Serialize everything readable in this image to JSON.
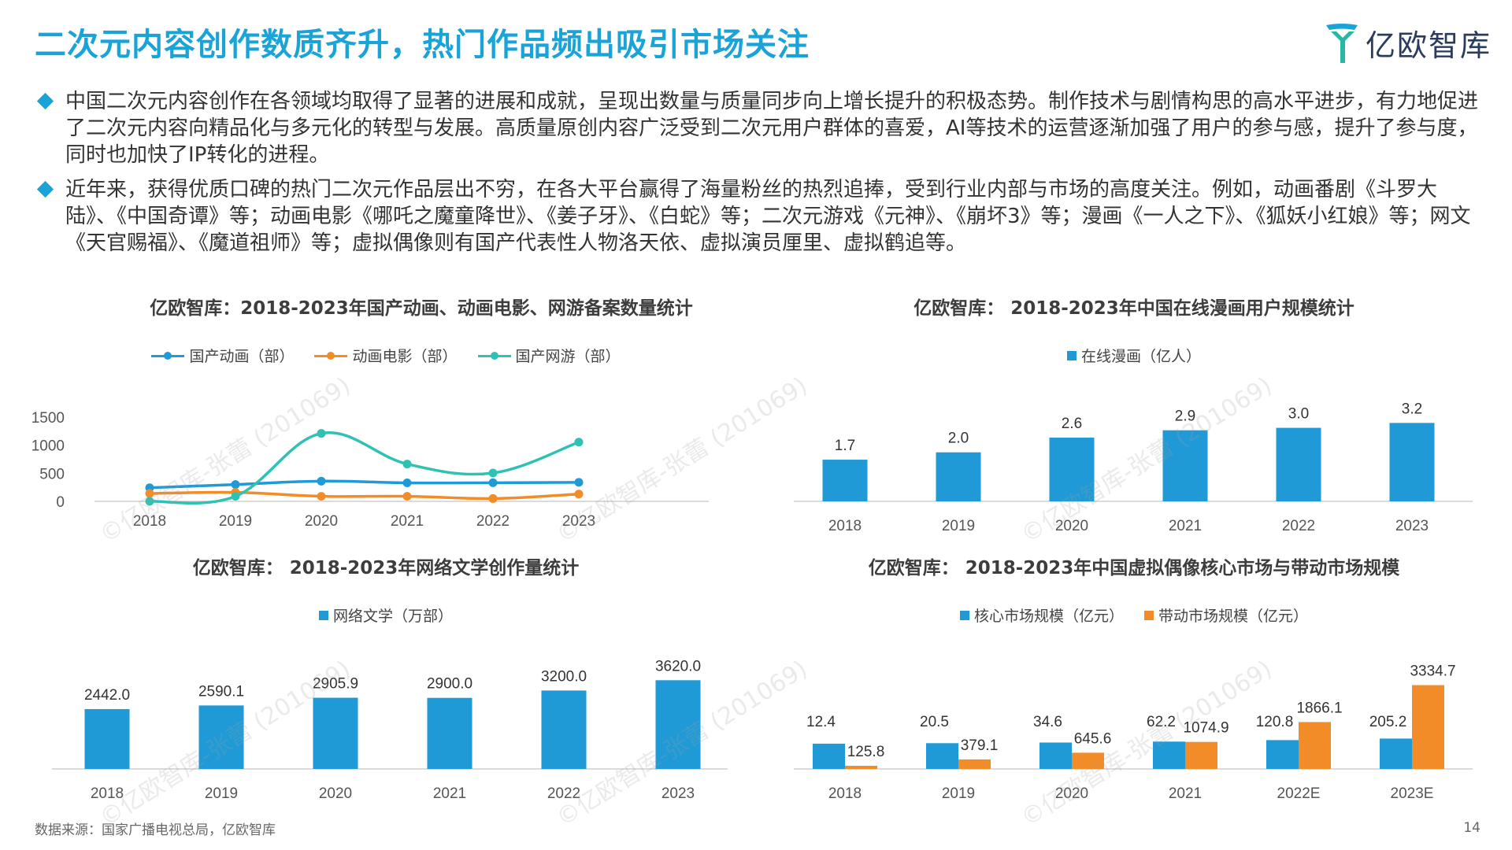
{
  "title": "二次元内容创作数质齐升，热门作品频出吸引市场关注",
  "logo": {
    "text": "亿欧智库"
  },
  "colors": {
    "accent": "#1aa3d6",
    "bar_blue": "#1f9ad6",
    "orange": "#f28c28",
    "teal": "#2fc1b4"
  },
  "bullets": [
    "中国二次元内容创作在各领域均取得了显著的进展和成就，呈现出数量与质量同步向上增长提升的积极态势。制作技术与剧情构思的高水平进步，有力地促进了二次元内容向精品化与多元化的转型与发展。高质量原创内容广泛受到二次元用户群体的喜爱，AI等技术的运营逐渐加强了用户的参与感，提升了参与度，同时也加快了IP转化的进程。",
    "近年来，获得优质口碑的热门二次元作品层出不穷，在各大平台赢得了海量粉丝的热烈追捧，受到行业内部与市场的高度关注。例如，动画番剧《斗罗大陆》、《中国奇谭》等；动画电影《哪吒之魔童降世》、《姜子牙》、《白蛇》等；二次元游戏《元神》、《崩坏3》等；漫画《一人之下》、《狐妖小红娘》等；网文《天官赐福》、《魔道祖师》等；虚拟偶像则有国产代表性人物洛天依、虚拟演员厘里、虚拟鹤追等。"
  ],
  "watermark": "©亿欧智库-张蕾 (201069)",
  "source": "数据来源：国家广播电视总局，亿欧智库",
  "page_number": "14",
  "chart_data": [
    {
      "type": "line",
      "title": "亿欧智库：2018-2023年国产动画、动画电影、网游备案数量统计",
      "categories": [
        "2018",
        "2019",
        "2020",
        "2021",
        "2022",
        "2023"
      ],
      "ylim": [
        0,
        1500
      ],
      "yticks": [
        "0",
        "500",
        "1000",
        "1500"
      ],
      "smooth": true,
      "grid": false,
      "legend_position": "top",
      "series": [
        {
          "name": "国产动画（部）",
          "color": "#1f9ad6",
          "values": [
            241,
            300,
            360,
            330,
            331,
            338
          ]
        },
        {
          "name": "动画电影（部）",
          "color": "#f28c28",
          "values": [
            140,
            160,
            90,
            90,
            50,
            130
          ]
        },
        {
          "name": "国产网游（部）",
          "color": "#2fc1b4",
          "values": [
            0,
            90,
            1210,
            665,
            505,
            1055
          ]
        }
      ]
    },
    {
      "type": "bar",
      "title": "亿欧智库： 2018-2023年中国在线漫画用户规模统计",
      "categories": [
        "2018",
        "2019",
        "2020",
        "2021",
        "2022",
        "2023"
      ],
      "ylim": [
        0,
        4.4
      ],
      "legend_position": "top",
      "series": [
        {
          "name": "在线漫画（亿人）",
          "color": "#1f9ad6",
          "values": [
            1.7,
            2.0,
            2.6,
            2.9,
            3.0,
            3.2
          ],
          "labels": [
            "1.7",
            "2.0",
            "2.6",
            "2.9",
            "3.0",
            "3.2"
          ]
        }
      ]
    },
    {
      "type": "bar",
      "title": "亿欧智库： 2018-2023年网络文学创作量统计",
      "categories": [
        "2018",
        "2019",
        "2020",
        "2021",
        "2022",
        "2023"
      ],
      "ylim": [
        0,
        4400
      ],
      "legend_position": "top",
      "series": [
        {
          "name": "网络文学（万部）",
          "color": "#1f9ad6",
          "values": [
            2442.0,
            2590.1,
            2905.9,
            2900.0,
            3200.0,
            3620.0
          ],
          "labels": [
            "2442.0",
            "2590.1",
            "2905.9",
            "2900.0",
            "3200.0",
            "3620.0"
          ]
        }
      ]
    },
    {
      "type": "bar",
      "title": "亿欧智库： 2018-2023年中国虚拟偶像核心市场与带动市场规模",
      "categories": [
        "2018",
        "2019",
        "2020",
        "2021",
        "2022E",
        "2023E"
      ],
      "legend_position": "top",
      "series": [
        {
          "name": "核心市场规模（亿元）",
          "color": "#1f9ad6",
          "values": [
            12.4,
            20.5,
            34.6,
            62.2,
            120.8,
            205.2
          ],
          "labels": [
            "12.4",
            "20.5",
            "34.6",
            "62.2",
            "120.8",
            "205.2"
          ]
        },
        {
          "name": "带动市场规模（亿元）",
          "color": "#f28c28",
          "values": [
            125.8,
            379.1,
            645.6,
            1074.9,
            1866.1,
            3334.7
          ],
          "labels": [
            "125.8",
            "379.1",
            "645.6",
            "1074.9",
            "1866.1",
            "3334.7"
          ]
        }
      ]
    }
  ]
}
